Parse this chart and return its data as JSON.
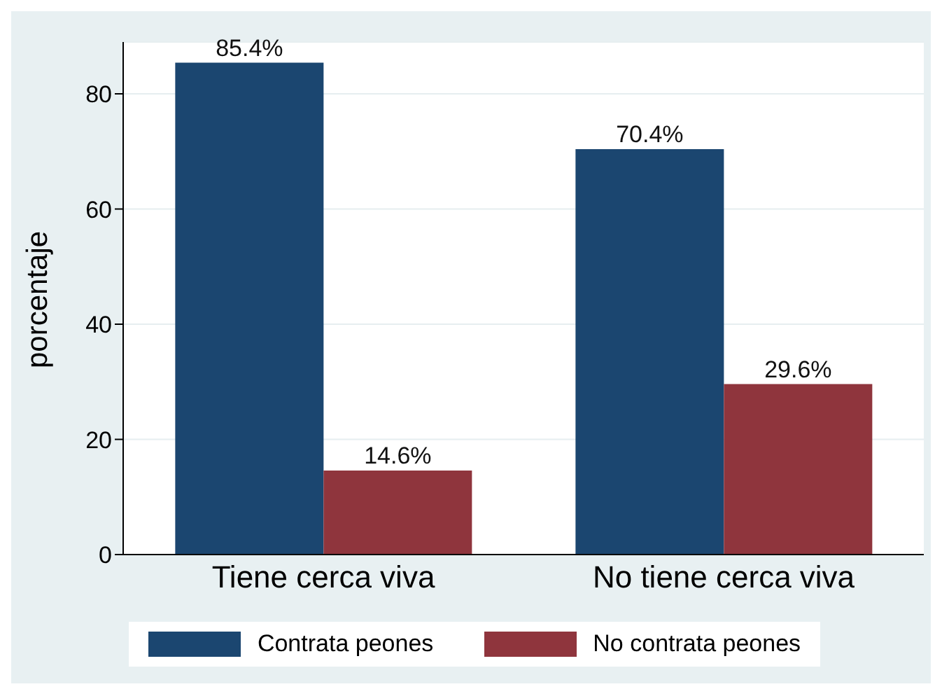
{
  "chart_data": {
    "type": "bar",
    "ylabel": "porcentaje",
    "categories": [
      "Tiene cerca viva",
      "No tiene cerca viva"
    ],
    "series": [
      {
        "name": "Contrata peones",
        "color": "#1b4670",
        "values": [
          85.4,
          70.4
        ],
        "value_labels": [
          "85.4%",
          "70.4%"
        ]
      },
      {
        "name": "No contrata peones",
        "color": "#8f353d",
        "values": [
          14.6,
          29.6
        ],
        "value_labels": [
          "14.6%",
          "29.6%"
        ]
      }
    ],
    "ylim": [
      0,
      89
    ],
    "yticks": [
      0,
      20,
      40,
      60,
      80
    ],
    "grid": "y",
    "legend": "bottom"
  }
}
